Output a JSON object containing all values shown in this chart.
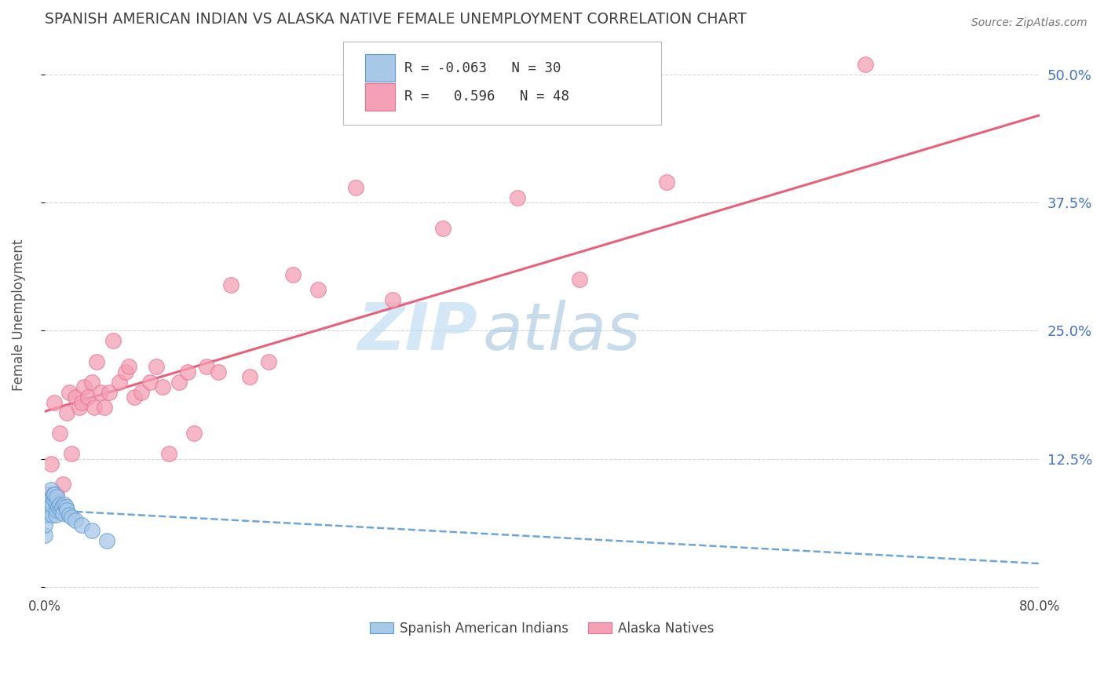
{
  "title": "SPANISH AMERICAN INDIAN VS ALASKA NATIVE FEMALE UNEMPLOYMENT CORRELATION CHART",
  "source": "Source: ZipAtlas.com",
  "ylabel_left": "Female Unemployment",
  "watermark_zip": "ZIP",
  "watermark_atlas": "atlas",
  "legend_labels": [
    "Spanish American Indians",
    "Alaska Natives"
  ],
  "R_blue": -0.063,
  "N_blue": 30,
  "R_pink": 0.596,
  "N_pink": 48,
  "blue_color": "#a8c8e8",
  "pink_color": "#f4a0b5",
  "blue_edge_color": "#5b9bd5",
  "pink_edge_color": "#e87090",
  "blue_line_color": "#5b9bd5",
  "pink_line_color": "#e8607a",
  "background_color": "#ffffff",
  "title_color": "#404040",
  "right_tick_color": "#4472c4",
  "blue_scatter_x": [
    0.0,
    0.0,
    0.0,
    0.002,
    0.003,
    0.004,
    0.005,
    0.006,
    0.006,
    0.007,
    0.008,
    0.008,
    0.009,
    0.01,
    0.01,
    0.01,
    0.011,
    0.012,
    0.013,
    0.014,
    0.015,
    0.016,
    0.017,
    0.018,
    0.02,
    0.022,
    0.025,
    0.03,
    0.038,
    0.05
  ],
  "blue_scatter_y": [
    0.05,
    0.06,
    0.07,
    0.075,
    0.08,
    0.085,
    0.095,
    0.07,
    0.08,
    0.09,
    0.085,
    0.09,
    0.07,
    0.075,
    0.082,
    0.088,
    0.078,
    0.08,
    0.075,
    0.078,
    0.072,
    0.08,
    0.078,
    0.075,
    0.07,
    0.068,
    0.065,
    0.06,
    0.055,
    0.045
  ],
  "pink_scatter_x": [
    0.0,
    0.002,
    0.005,
    0.008,
    0.01,
    0.012,
    0.015,
    0.018,
    0.02,
    0.022,
    0.025,
    0.028,
    0.03,
    0.032,
    0.035,
    0.038,
    0.04,
    0.042,
    0.045,
    0.048,
    0.052,
    0.055,
    0.06,
    0.065,
    0.068,
    0.072,
    0.078,
    0.085,
    0.09,
    0.095,
    0.1,
    0.108,
    0.115,
    0.12,
    0.13,
    0.14,
    0.15,
    0.165,
    0.18,
    0.2,
    0.22,
    0.25,
    0.28,
    0.32,
    0.38,
    0.43,
    0.5,
    0.66
  ],
  "pink_scatter_y": [
    0.08,
    0.09,
    0.12,
    0.18,
    0.09,
    0.15,
    0.1,
    0.17,
    0.19,
    0.13,
    0.185,
    0.175,
    0.18,
    0.195,
    0.185,
    0.2,
    0.175,
    0.22,
    0.19,
    0.175,
    0.19,
    0.24,
    0.2,
    0.21,
    0.215,
    0.185,
    0.19,
    0.2,
    0.215,
    0.195,
    0.13,
    0.2,
    0.21,
    0.15,
    0.215,
    0.21,
    0.295,
    0.205,
    0.22,
    0.305,
    0.29,
    0.39,
    0.28,
    0.35,
    0.38,
    0.3,
    0.395,
    0.51
  ],
  "xlim": [
    0.0,
    0.8
  ],
  "ylim": [
    -0.005,
    0.535
  ],
  "yticks": [
    0.0,
    0.125,
    0.25,
    0.375,
    0.5
  ],
  "ytick_labels_right": [
    "12.5%",
    "25.0%",
    "37.5%",
    "50.0%"
  ],
  "yticks_right": [
    0.125,
    0.25,
    0.375,
    0.5
  ],
  "xticks": [
    0.0,
    0.1,
    0.2,
    0.3,
    0.4,
    0.5,
    0.6,
    0.7,
    0.8
  ],
  "xtick_labels": [
    "0.0%",
    "",
    "",
    "",
    "",
    "",
    "",
    "",
    "80.0%"
  ]
}
